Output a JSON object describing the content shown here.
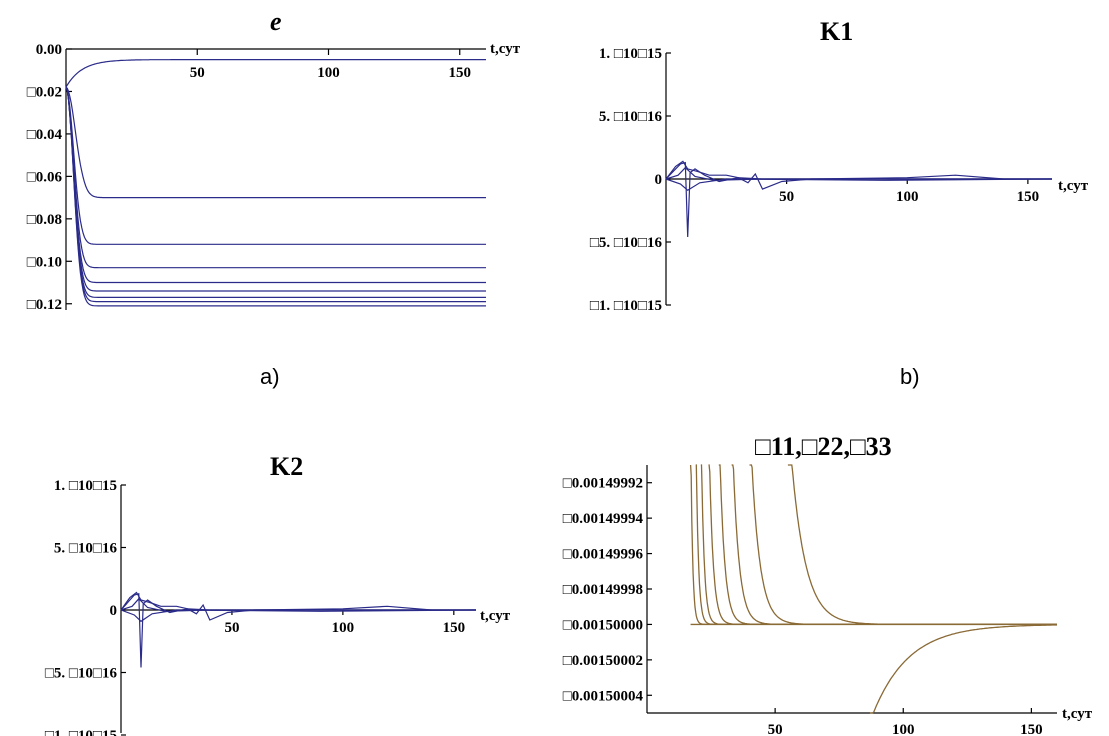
{
  "panels": {
    "a": "a)",
    "b": "b)"
  },
  "chart_data": [
    {
      "type": "line",
      "title": "e",
      "xlabel": "t,сут",
      "ylabel": "",
      "x_ticks": [
        "50",
        "100",
        "150"
      ],
      "y_ticks": [
        "0.00",
        "□0.02",
        "□0.04",
        "□0.06",
        "□0.08",
        "□0.10",
        "□0.12"
      ],
      "xlim": [
        0,
        160
      ],
      "ylim": [
        -0.122,
        0.0
      ],
      "color": "#2b2b8a",
      "series_final_values": [
        -0.005,
        -0.07,
        -0.092,
        -0.103,
        -0.11,
        -0.114,
        -0.117,
        -0.119,
        -0.121
      ],
      "start_value": -0.018
    },
    {
      "type": "line",
      "title": "K1",
      "xlabel": "t,сут",
      "ylabel": "",
      "x_ticks": [
        "50",
        "100",
        "150"
      ],
      "y_ticks": [
        "1. □10□15",
        "5. □10□16",
        "0",
        "□5. □10□16",
        "□1. □10□15"
      ],
      "xlim": [
        0,
        160
      ],
      "ylim": [
        -1e-15,
        1e-15
      ],
      "color": "#2b2b8a",
      "spike_min": -4.6e-16,
      "spike_x": 9
    },
    {
      "type": "line",
      "title": "K2",
      "xlabel": "t,сут",
      "ylabel": "",
      "x_ticks": [
        "50",
        "100",
        "150"
      ],
      "y_ticks": [
        "1. □10□15",
        "5. □10□16",
        "0",
        "□5. □10□16",
        "□1. □10□15"
      ],
      "xlim": [
        0,
        160
      ],
      "ylim": [
        -1e-15,
        1e-15
      ],
      "color": "#2b2b8a",
      "spike_min": -4.6e-16,
      "spike_x": 9
    },
    {
      "type": "line",
      "title": "□11,□22,□33",
      "xlabel": "t,сут",
      "ylabel": "",
      "x_ticks": [
        "50",
        "100",
        "150"
      ],
      "y_ticks": [
        "□0.00149992",
        "□0.00149994",
        "□0.00149996",
        "□0.00149998",
        "□0.00150000",
        "□0.00150002",
        "□0.00150004"
      ],
      "xlim": [
        0,
        160
      ],
      "ylim": [
        -0.00150005,
        -0.00149991
      ],
      "color": "#8a6a36",
      "asymptote": -0.0015
    }
  ]
}
